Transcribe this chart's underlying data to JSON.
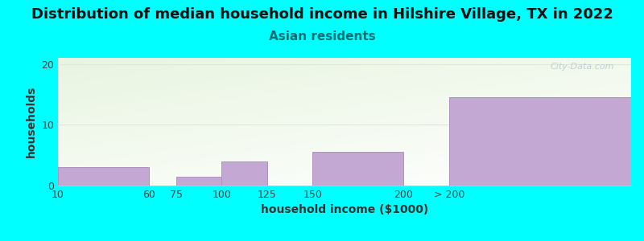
{
  "title": "Distribution of median household income in Hilshire Village, TX in 2022",
  "subtitle": "Asian residents",
  "xlabel": "household income ($1000)",
  "ylabel": "households",
  "background_color": "#00FFFF",
  "bar_color": "#c4a8d4",
  "bar_edge_color": "#b090c0",
  "tick_labels": [
    "10",
    "60",
    "75",
    "100",
    "125",
    "150",
    "200",
    "> 200"
  ],
  "bar_lefts": [
    10,
    75,
    100,
    150,
    225
  ],
  "bar_widths": [
    50,
    25,
    25,
    50,
    100
  ],
  "bar_heights": [
    3,
    1.5,
    4,
    5.5,
    14.5
  ],
  "tick_positions": [
    10,
    60,
    75,
    100,
    125,
    150,
    200,
    225
  ],
  "xlim": [
    10,
    325
  ],
  "ylim": [
    0,
    21
  ],
  "yticks": [
    0,
    10,
    20
  ],
  "title_fontsize": 13,
  "subtitle_fontsize": 11,
  "subtitle_color": "#007070",
  "axis_label_fontsize": 10,
  "tick_fontsize": 9,
  "watermark": "City-Data.com",
  "plot_bg_colors": [
    "#e8f5e0",
    "#f5faf0",
    "#ffffff"
  ],
  "grid_color": "#e0e8d8"
}
